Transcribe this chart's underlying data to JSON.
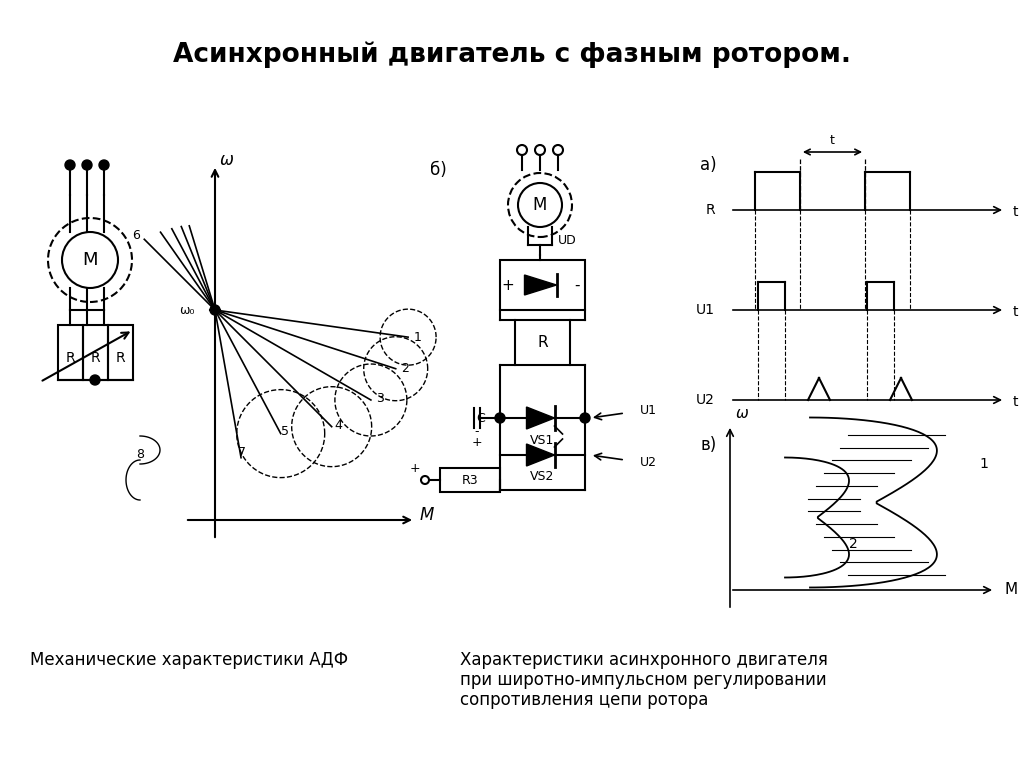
{
  "title": "Асинхронный двигатель с фазным ротором.",
  "title_fontsize": 19,
  "title_bold": true,
  "bg_color": "#ffffff",
  "bottom_left_label": "Механические характеристики АДФ",
  "bottom_right_label_1": "Характеристики асинхронного двигателя",
  "bottom_right_label_2": "при широтно-импульсном регулировании",
  "bottom_right_label_3": "сопротивления цепи ротора",
  "label_fontsize": 12,
  "section_b_label": "б)",
  "section_a_label": "а)",
  "section_v_label": "в)"
}
